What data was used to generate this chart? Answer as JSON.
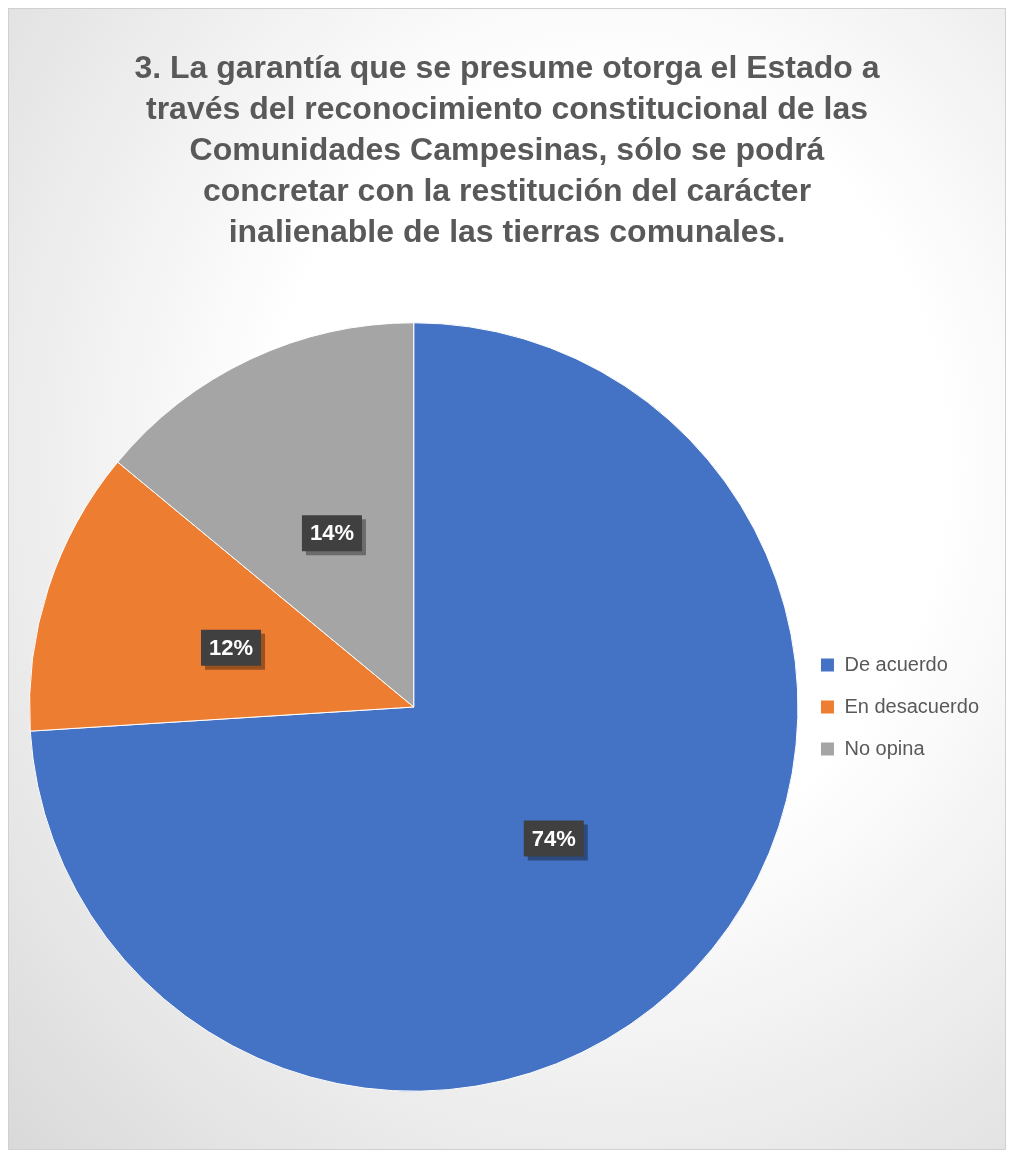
{
  "chart_data": {
    "type": "pie",
    "title": "3. La garantía que se presume otorga el Estado a través del reconocimiento constitucional de las Comunidades Campesinas, sólo se podrá concretar con la restitución del carácter inalienable de las tierras comunales.",
    "categories": [
      "De acuerdo",
      "En desacuerdo",
      "No opina"
    ],
    "values": [
      74,
      12,
      14
    ],
    "colors": [
      "#4472c4",
      "#ed7d31",
      "#a5a5a5"
    ],
    "value_labels": [
      "74%",
      "12%",
      "14%"
    ],
    "legend": "right"
  }
}
